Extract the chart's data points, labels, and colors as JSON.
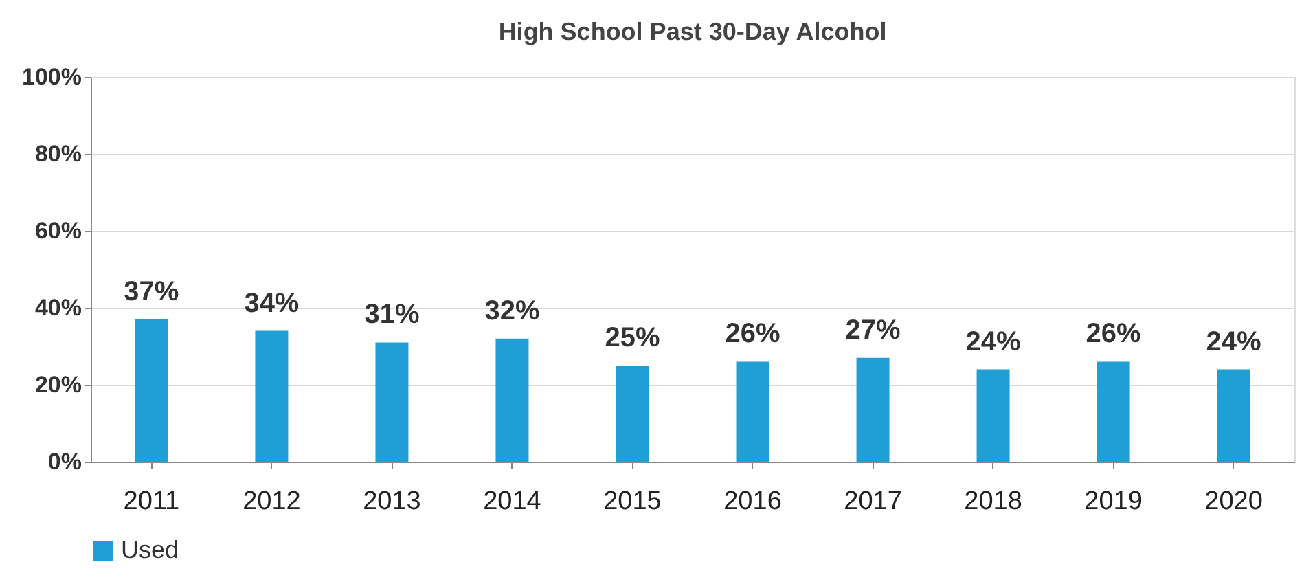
{
  "chart_data": {
    "type": "bar",
    "title": "High School Past 30-Day Alcohol",
    "categories": [
      "2011",
      "2012",
      "2013",
      "2014",
      "2015",
      "2016",
      "2017",
      "2018",
      "2019",
      "2020"
    ],
    "series": [
      {
        "name": "Used",
        "color": "#1f9fd6",
        "values": [
          37,
          34,
          31,
          32,
          25,
          26,
          27,
          24,
          26,
          24
        ],
        "value_labels": [
          "37%",
          "34%",
          "31%",
          "32%",
          "25%",
          "26%",
          "27%",
          "24%",
          "26%",
          "24%"
        ]
      }
    ],
    "ylim": [
      0,
      100
    ],
    "yticks": [
      {
        "value": 0,
        "label": "0%"
      },
      {
        "value": 20,
        "label": "20%"
      },
      {
        "value": 40,
        "label": "40%"
      },
      {
        "value": 60,
        "label": "60%"
      },
      {
        "value": 80,
        "label": "80%"
      },
      {
        "value": 100,
        "label": "100%"
      }
    ],
    "grid": "y",
    "legend": "bottom"
  }
}
